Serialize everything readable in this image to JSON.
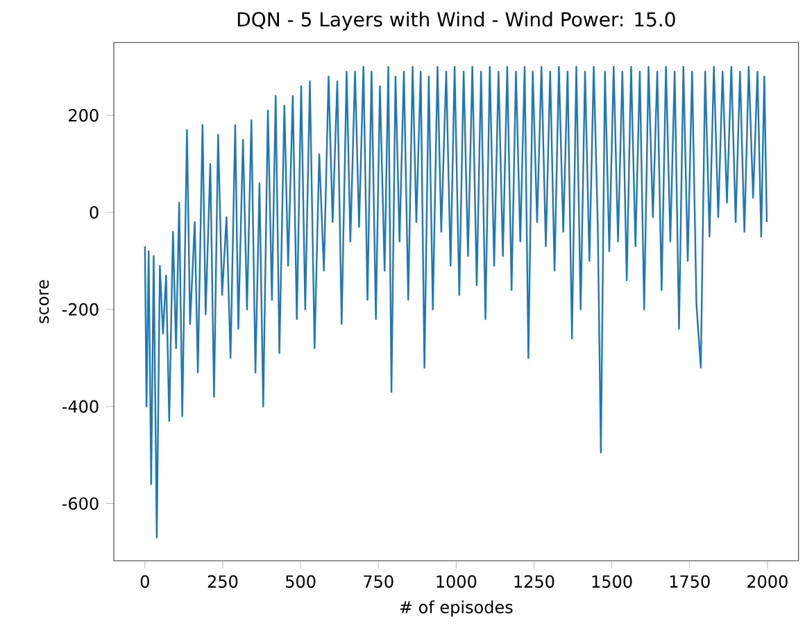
{
  "chart_data": {
    "type": "line",
    "title": "DQN - 5 Layers with Wind - Wind Power: 15.0",
    "xlabel": "# of episodes",
    "ylabel": "score",
    "xlim": [
      -100,
      2100
    ],
    "ylim": [
      -718,
      350
    ],
    "xticks": [
      0,
      250,
      500,
      750,
      1000,
      1250,
      1500,
      1750,
      2000
    ],
    "yticks": [
      -600,
      -400,
      -200,
      0,
      200
    ],
    "marker": "none",
    "line_style": "solid",
    "series": [
      {
        "color": "#1f77b4",
        "x": [
          0,
          5,
          12,
          20,
          28,
          38,
          48,
          58,
          68,
          78,
          90,
          100,
          110,
          120,
          135,
          145,
          160,
          170,
          185,
          195,
          210,
          222,
          235,
          248,
          262,
          275,
          290,
          300,
          315,
          328,
          342,
          355,
          368,
          380,
          395,
          408,
          420,
          432,
          448,
          460,
          475,
          488,
          502,
          515,
          530,
          545,
          560,
          575,
          590,
          603,
          618,
          632,
          648,
          660,
          675,
          688,
          702,
          715,
          728,
          742,
          755,
          770,
          782,
          792,
          805,
          818,
          832,
          846,
          860,
          872,
          886,
          898,
          912,
          925,
          940,
          952,
          968,
          982,
          995,
          1010,
          1024,
          1038,
          1052,
          1066,
          1080,
          1094,
          1108,
          1122,
          1136,
          1150,
          1164,
          1178,
          1192,
          1206,
          1220,
          1232,
          1246,
          1260,
          1274,
          1288,
          1302,
          1316,
          1330,
          1344,
          1358,
          1372,
          1386,
          1400,
          1414,
          1428,
          1442,
          1455,
          1465,
          1478,
          1492,
          1506,
          1520,
          1534,
          1548,
          1562,
          1576,
          1590,
          1604,
          1618,
          1632,
          1646,
          1660,
          1674,
          1688,
          1702,
          1716,
          1730,
          1744,
          1758,
          1772,
          1786,
          1800,
          1814,
          1828,
          1842,
          1856,
          1870,
          1884,
          1898,
          1912,
          1926,
          1940,
          1954,
          1968,
          1980,
          1990,
          1998
        ],
        "values": [
          -70,
          -400,
          -80,
          -560,
          -90,
          -670,
          -110,
          -250,
          -130,
          -430,
          -40,
          -280,
          20,
          -420,
          170,
          -230,
          -20,
          -330,
          180,
          -210,
          100,
          -380,
          160,
          -170,
          -10,
          -300,
          180,
          -240,
          150,
          -200,
          190,
          -330,
          60,
          -400,
          210,
          -180,
          240,
          -290,
          220,
          -110,
          240,
          -220,
          260,
          -200,
          270,
          -280,
          120,
          -120,
          280,
          -20,
          270,
          -230,
          290,
          -60,
          290,
          -30,
          300,
          -180,
          290,
          -220,
          260,
          -120,
          300,
          -370,
          280,
          -60,
          290,
          -180,
          300,
          -20,
          290,
          -320,
          280,
          -200,
          300,
          -40,
          290,
          -110,
          300,
          -170,
          290,
          -90,
          300,
          -150,
          290,
          -220,
          300,
          -110,
          290,
          -90,
          300,
          -160,
          290,
          -60,
          300,
          -300,
          290,
          -20,
          300,
          -70,
          290,
          -120,
          300,
          -40,
          290,
          -260,
          300,
          -200,
          290,
          -100,
          300,
          -30,
          -495,
          290,
          -80,
          300,
          -60,
          290,
          -140,
          300,
          -70,
          290,
          -200,
          300,
          -10,
          290,
          -160,
          300,
          -60,
          290,
          -240,
          300,
          -100,
          290,
          -190,
          -320,
          290,
          -50,
          300,
          -10,
          290,
          20,
          300,
          -20,
          290,
          -40,
          300,
          30,
          290,
          -50,
          280,
          -20
        ]
      }
    ]
  }
}
